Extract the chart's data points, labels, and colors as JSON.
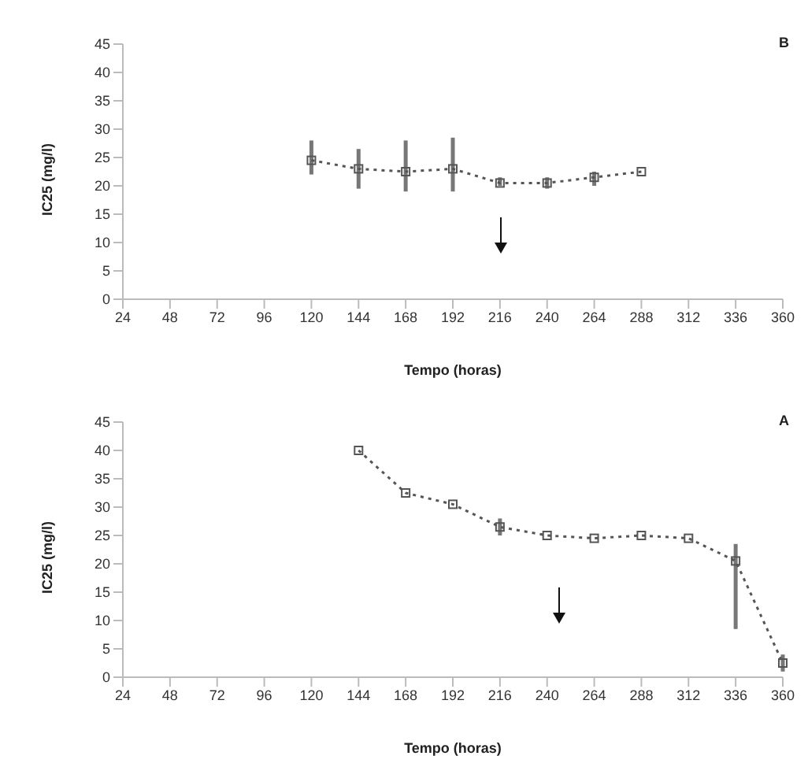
{
  "chart_data": [
    {
      "type": "line",
      "ylabel": "IC25 (mg/l)",
      "xlabel": "Tempo (horas)",
      "annotations": [
        "B"
      ],
      "categories": [
        "24",
        "48",
        "72",
        "96",
        "120",
        "144",
        "168",
        "192",
        "216",
        "240",
        "264",
        "288",
        "312",
        "336",
        "360"
      ],
      "series": [
        {
          "color": "#555555",
          "values": [
            null,
            null,
            null,
            null,
            24.5,
            23,
            22.5,
            23,
            20.5,
            20.5,
            21.5,
            22.5,
            null,
            null,
            null
          ],
          "errors": [
            null,
            null,
            null,
            null,
            [
              22,
              28
            ],
            [
              19.5,
              26.5
            ],
            [
              19,
              28
            ],
            [
              19,
              28.5
            ],
            [
              20,
              21.5
            ],
            [
              19.5,
              21.5
            ],
            [
              20,
              22.5
            ],
            null,
            null,
            null,
            null
          ]
        }
      ],
      "ylim": [
        0,
        45
      ],
      "yticks": [
        0,
        5,
        10,
        15,
        20,
        25,
        30,
        35,
        40,
        45
      ],
      "grid": false,
      "legend": false,
      "marker": "square",
      "line_style": "dotted"
    },
    {
      "type": "line",
      "ylabel": "IC25 (mg/l)",
      "xlabel": "Tempo (horas)",
      "annotations": [
        "A"
      ],
      "categories": [
        "24",
        "48",
        "72",
        "96",
        "120",
        "144",
        "168",
        "192",
        "216",
        "240",
        "264",
        "288",
        "312",
        "336",
        "360"
      ],
      "series": [
        {
          "color": "#555555",
          "values": [
            null,
            null,
            null,
            null,
            null,
            40,
            32.5,
            30.5,
            26.5,
            25,
            24.5,
            25,
            24.5,
            20.5,
            2.5
          ],
          "errors": [
            null,
            null,
            null,
            null,
            null,
            null,
            null,
            null,
            [
              25,
              28
            ],
            null,
            null,
            null,
            null,
            [
              8.5,
              23.5
            ],
            [
              1,
              4
            ]
          ]
        }
      ],
      "ylim": [
        0,
        45
      ],
      "yticks": [
        0,
        5,
        10,
        15,
        20,
        25,
        30,
        35,
        40,
        45
      ],
      "grid": false,
      "legend": false,
      "marker": "square",
      "line_style": "dotted"
    }
  ]
}
